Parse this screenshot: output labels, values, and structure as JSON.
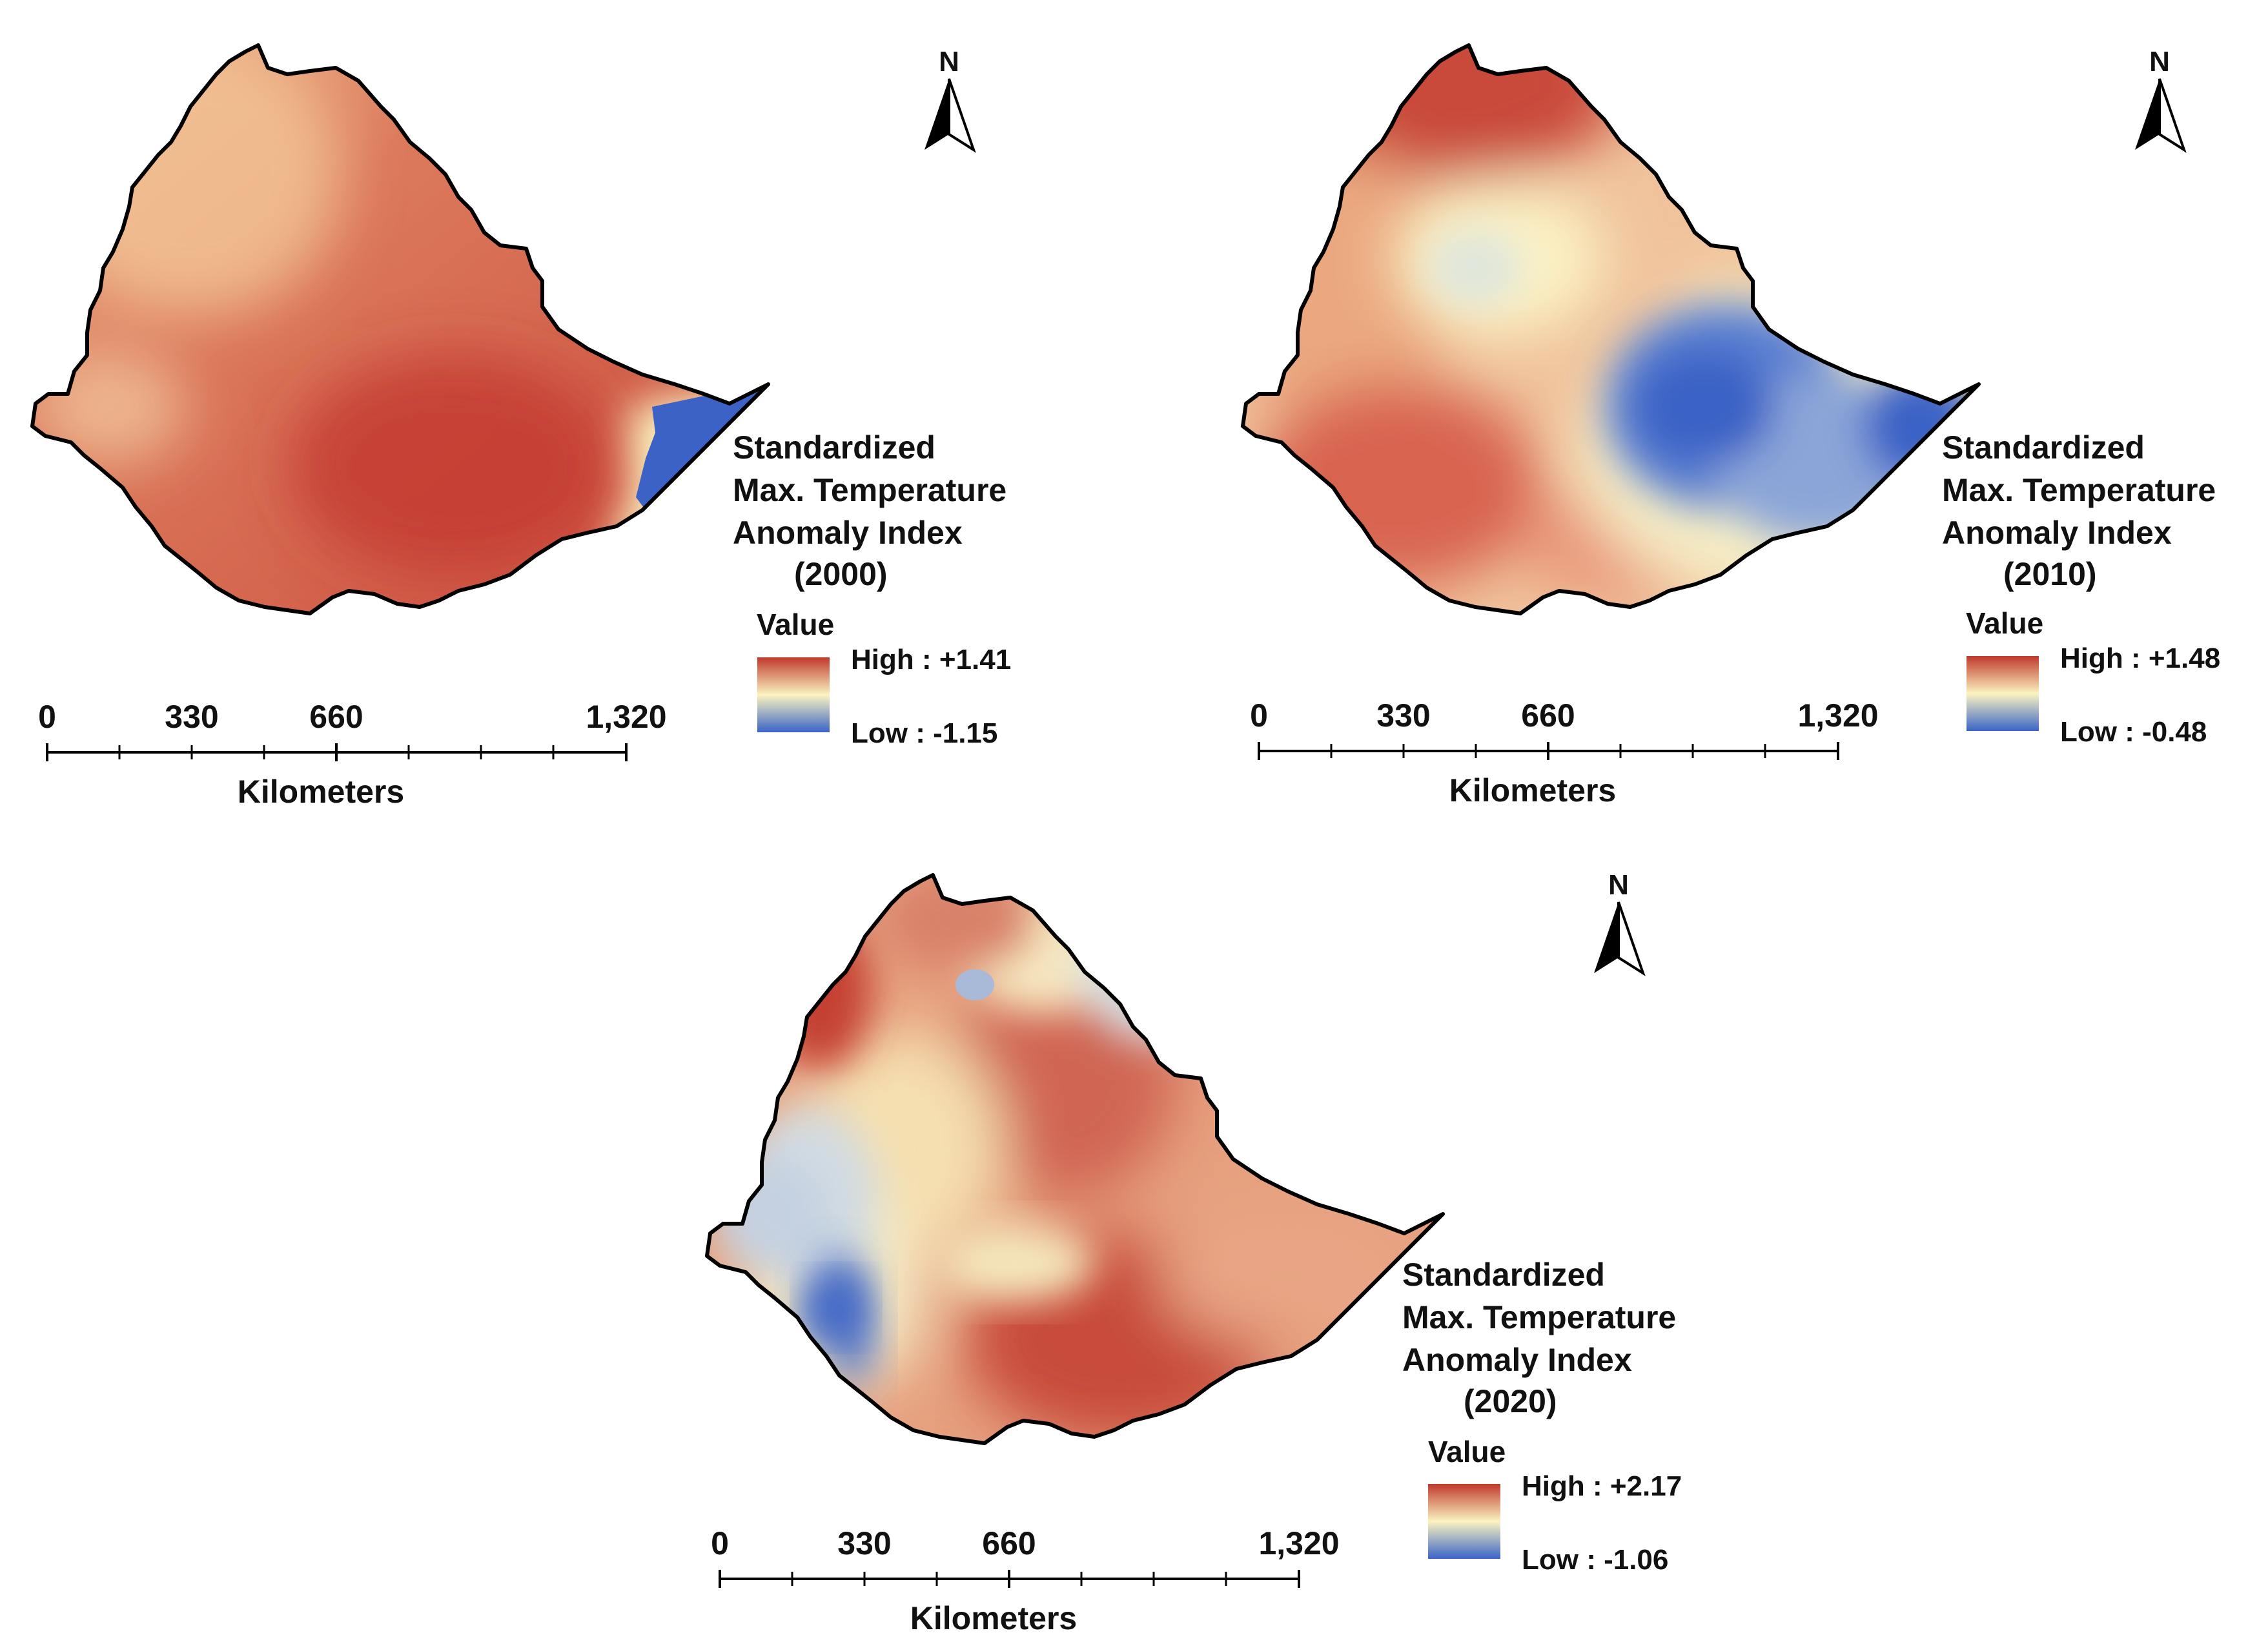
{
  "north_label": "N",
  "scale_unit": "Kilometers",
  "scale_ticks": [
    "0",
    "330",
    "660",
    "1,320"
  ],
  "value_heading": "Value",
  "colors": {
    "high": "#c0392b",
    "mid": "#fbf3c0",
    "low": "#3a64c8",
    "border": "#000000"
  },
  "maps": [
    {
      "id": "2000",
      "legend_title": [
        "Standardized",
        "Max. Temperature",
        "Anomaly Index",
        "(2000)"
      ],
      "high_label": "High : +1.41",
      "low_label": "Low : -1.15"
    },
    {
      "id": "2010",
      "legend_title": [
        "Standardized",
        "Max. Temperature",
        "Anomaly Index",
        "(2010)"
      ],
      "high_label": "High : +1.48",
      "low_label": "Low : -0.48"
    },
    {
      "id": "2020",
      "legend_title": [
        "Standardized",
        "Max. Temperature",
        "Anomaly Index",
        "(2020)"
      ],
      "high_label": "High : +2.17",
      "low_label": "Low : -1.06"
    }
  ]
}
